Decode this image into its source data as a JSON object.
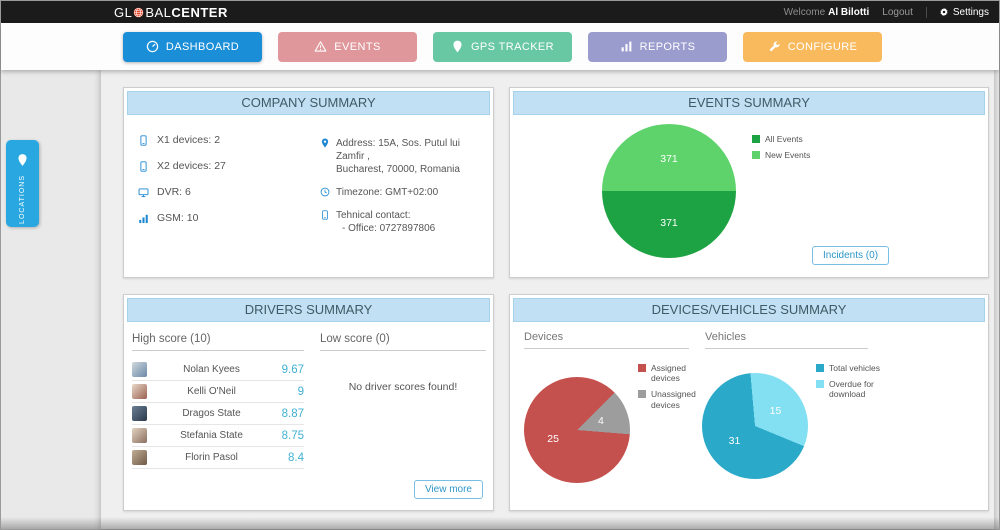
{
  "header": {
    "logo_part1": "GL",
    "logo_part2": "BAL",
    "logo_part3": "CENTER",
    "welcome_label": "Welcome",
    "user_name": "Al Bilotti",
    "logout_label": "Logout",
    "settings_label": "Settings"
  },
  "nav": {
    "tabs": [
      {
        "label": "DASHBOARD",
        "icon": "gauge-icon",
        "color": "#1b8ed8",
        "active": true
      },
      {
        "label": "EVENTS",
        "icon": "warning-icon",
        "color": "#e0979b",
        "active": false
      },
      {
        "label": "GPS TRACKER",
        "icon": "pin-icon",
        "color": "#68c8a4",
        "active": false
      },
      {
        "label": "REPORTS",
        "icon": "report-icon",
        "color": "#9b9cce",
        "active": false
      },
      {
        "label": "CONFIGURE",
        "icon": "wrench-icon",
        "color": "#f9ba5e",
        "active": false
      }
    ]
  },
  "locations_tab": {
    "label": "LOCATIONS"
  },
  "company_summary": {
    "title": "COMPANY SUMMARY",
    "device_counts": [
      {
        "icon": "mobile-icon",
        "label": "X1 devices: 2"
      },
      {
        "icon": "mobile-icon",
        "label": "X2 devices: 27"
      },
      {
        "icon": "monitor-icon",
        "label": "DVR: 6"
      },
      {
        "icon": "signal-icon",
        "label": "GSM: 10"
      }
    ],
    "address_line1": "Address: 15A, Sos. Putul lui Zamfir ,",
    "address_line2": "Bucharest, 70000, Romania",
    "timezone": "Timezone: GMT+02:00",
    "contact_line1": "Tehnical contact:",
    "contact_line2": "- Office: 0727897806"
  },
  "events_summary": {
    "title": "EVENTS SUMMARY",
    "incidents_button": "Incidents (0)"
  },
  "drivers_summary": {
    "title": "DRIVERS SUMMARY",
    "high_header": "High score (10)",
    "low_header": "Low score (0)",
    "high_scores": [
      {
        "name": "Nolan Kyees",
        "score": "9.67"
      },
      {
        "name": "Kelli O'Neil",
        "score": "9"
      },
      {
        "name": "Dragos State",
        "score": "8.87"
      },
      {
        "name": "Stefania State",
        "score": "8.75"
      },
      {
        "name": "Florin Pasol",
        "score": "8.4"
      }
    ],
    "low_empty_message": "No driver scores found!",
    "view_more_button": "View more"
  },
  "devices_vehicles_summary": {
    "title": "DEVICES/VEHICLES SUMMARY",
    "devices_header": "Devices",
    "vehicles_header": "Vehicles"
  },
  "chart_data": [
    {
      "id": "events-pie",
      "type": "pie",
      "start_angle": 270,
      "slices": [
        {
          "label": "New Events",
          "value": 371,
          "color": "#5ed36b"
        },
        {
          "label": "All Events",
          "value": 371,
          "color": "#1ea344"
        }
      ],
      "legend": [
        {
          "label": "All Events",
          "color": "#1ea344"
        },
        {
          "label": "New Events",
          "color": "#5ed36b"
        }
      ],
      "legend_position": "right"
    },
    {
      "id": "devices-pie",
      "type": "pie",
      "start_angle": 45,
      "slices": [
        {
          "label": "Unassigned devices",
          "value": 4,
          "color": "#9d9d9d"
        },
        {
          "label": "Assigned devices",
          "value": 25,
          "color": "#c5514e"
        }
      ],
      "legend": [
        {
          "label": "Assigned devices",
          "color": "#c5514e"
        },
        {
          "label": "Unassigned devices",
          "color": "#9d9d9d"
        }
      ],
      "legend_position": "right"
    },
    {
      "id": "vehicles-pie",
      "type": "pie",
      "start_angle": 355,
      "slices": [
        {
          "label": "Overdue for download",
          "value": 15,
          "color": "#83dff2"
        },
        {
          "label": "Total vehicles",
          "value": 31,
          "color": "#2aa9c9"
        }
      ],
      "legend": [
        {
          "label": "Total vehicles",
          "color": "#2aa9c9"
        },
        {
          "label": "Overdue for download",
          "color": "#83dff2"
        }
      ],
      "legend_position": "right"
    }
  ]
}
